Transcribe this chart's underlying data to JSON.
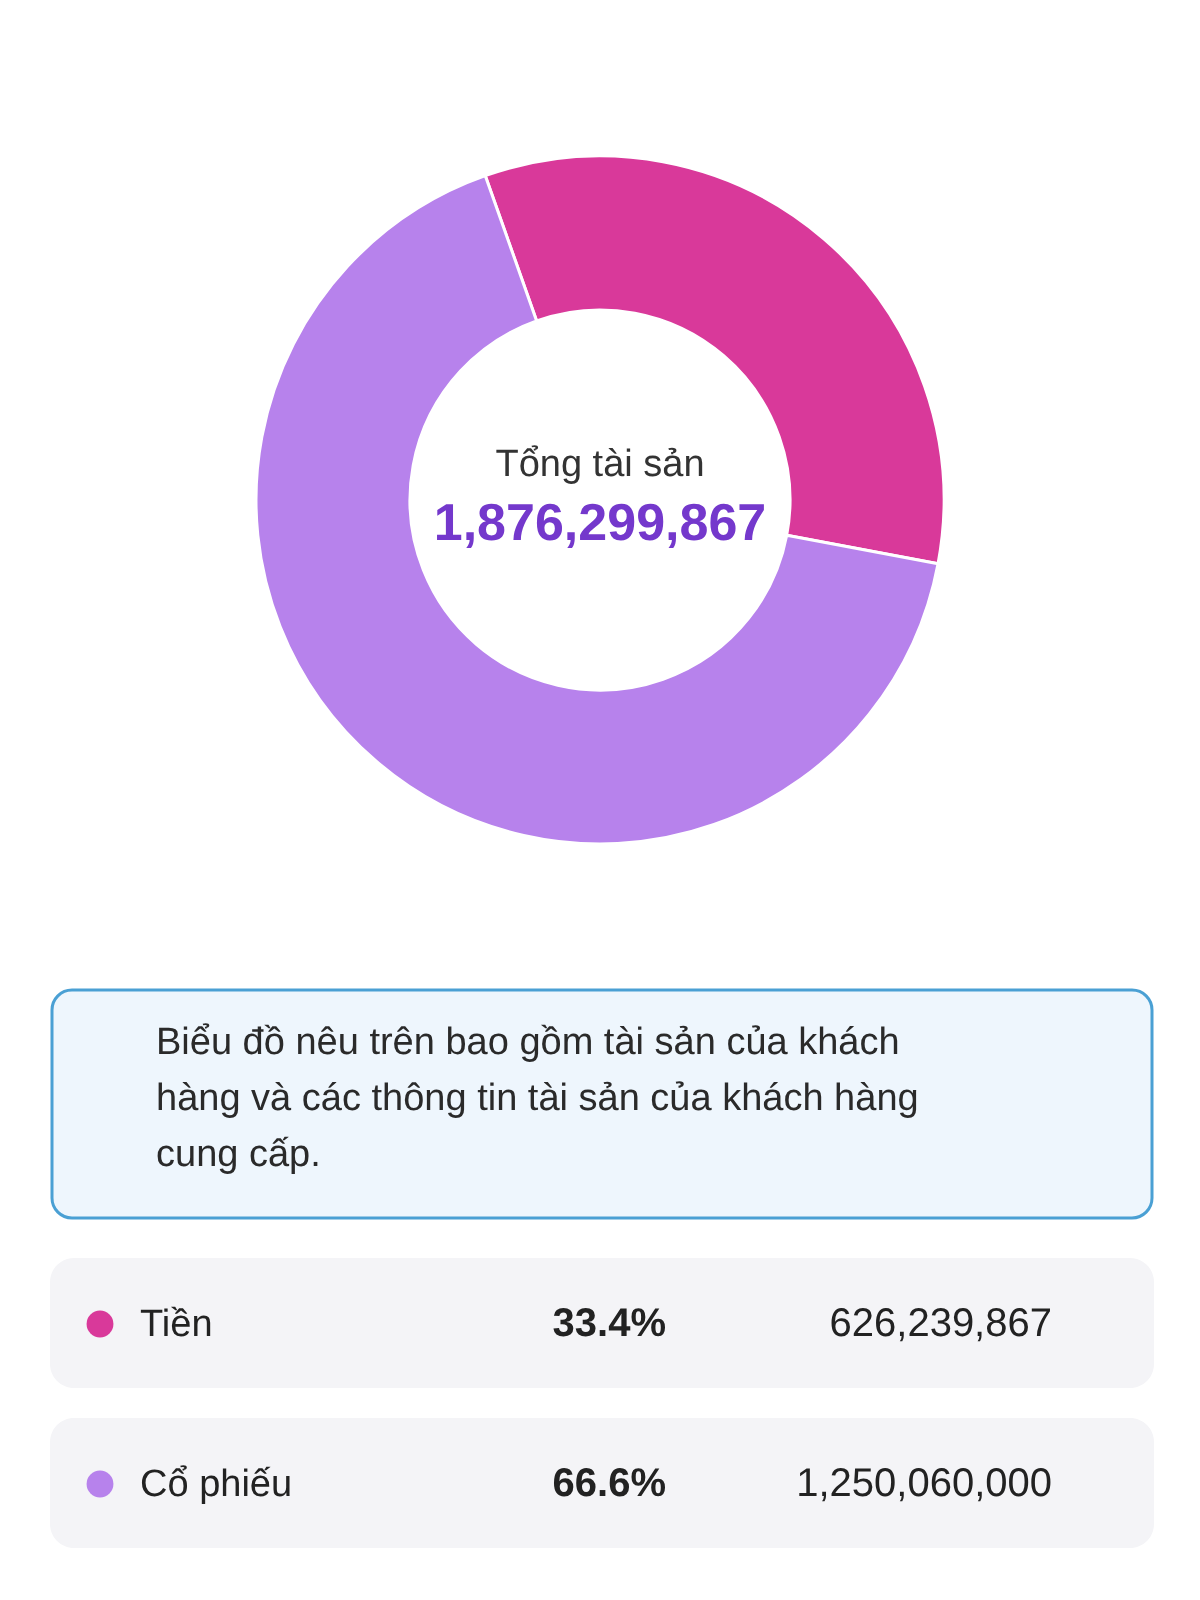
{
  "chart_data": {
    "type": "donut",
    "title": "Tổng tài sản",
    "subtitle": "1,876,299,867",
    "categories": [
      "Tiền",
      "Cổ phiếu"
    ],
    "values": [
      626239867,
      1250060000
    ],
    "colors": [
      "#d9399a",
      "#b782ec"
    ],
    "value_labels": [
      "626,239,867",
      "1,250,060,000"
    ],
    "legend": "bottom",
    "annotations": [
      "Biểu đồ nêu trên bao gồm tài sản của khách hàng và các thông tin tài sản của khách hàng cung cấp.",
      {
        "text": "33.4%",
        "x": "Tiền"
      },
      {
        "text": "66.6%",
        "x": "Cổ phiếu"
      }
    ]
  }
}
